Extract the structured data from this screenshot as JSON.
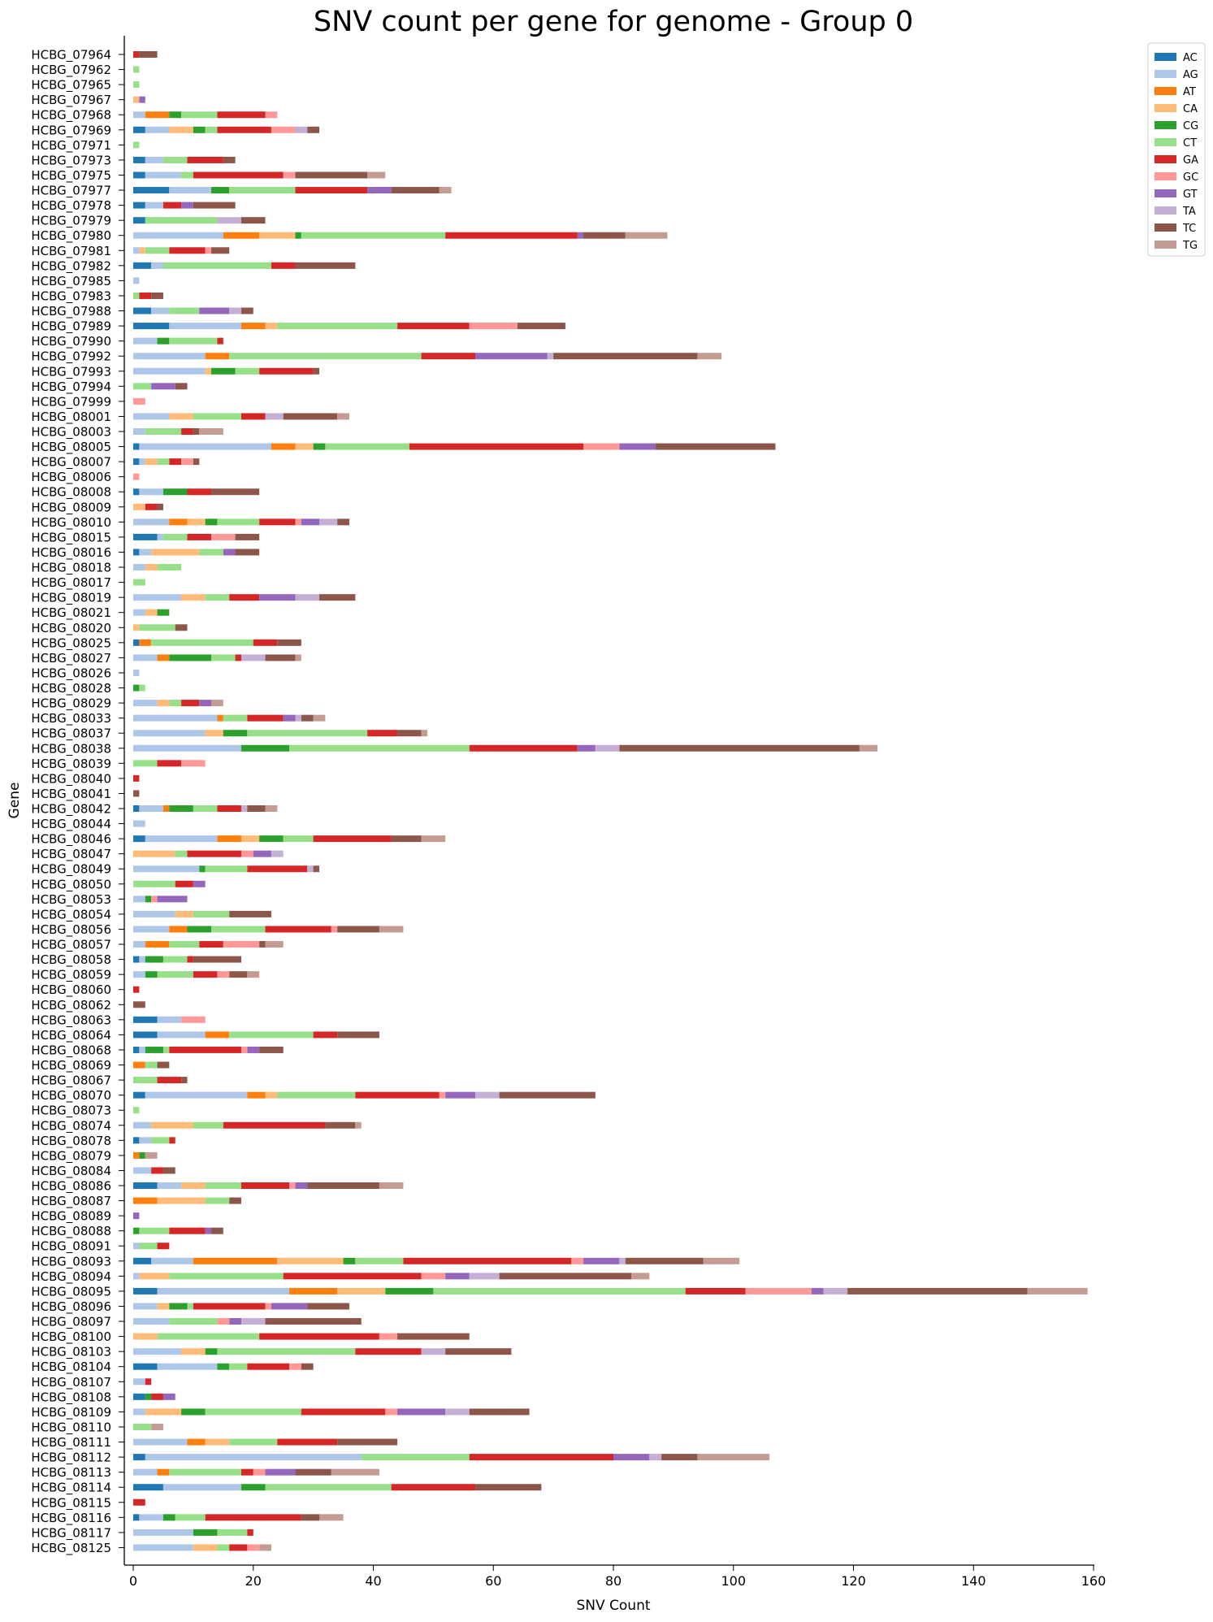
{
  "chart_data": {
    "type": "bar",
    "orientation": "horizontal",
    "stacked": true,
    "title": "SNV count per gene for genome - Group 0",
    "xlabel": "SNV Count",
    "ylabel": "Gene",
    "xlim": [
      0,
      160
    ],
    "xticks": [
      0,
      20,
      40,
      60,
      80,
      100,
      120,
      140,
      160
    ],
    "grid": false,
    "legend_position": "top-right (outside)",
    "series_names": [
      "AC",
      "AG",
      "AT",
      "CA",
      "CG",
      "CT",
      "GA",
      "GC",
      "GT",
      "TA",
      "TC",
      "TG"
    ],
    "colors": {
      "AC": "#1f77b4",
      "AG": "#aec7e8",
      "AT": "#ff7f0e",
      "CA": "#ffbb78",
      "CG": "#2ca02c",
      "CT": "#98df8a",
      "GA": "#d62728",
      "GC": "#ff9896",
      "GT": "#9467bd",
      "TA": "#c5b0d5",
      "TC": "#8c564b",
      "TG": "#c49c94"
    },
    "genes": [
      {
        "name": "HCBG_07964",
        "counts": {
          "GA": 1,
          "TC": 3
        }
      },
      {
        "name": "HCBG_07962",
        "counts": {
          "CT": 1
        }
      },
      {
        "name": "HCBG_07965",
        "counts": {
          "CT": 1
        }
      },
      {
        "name": "HCBG_07967",
        "counts": {
          "CA": 1,
          "GT": 1
        }
      },
      {
        "name": "HCBG_07968",
        "counts": {
          "AG": 2,
          "AT": 4,
          "CG": 2,
          "CT": 6,
          "GA": 8,
          "GC": 2
        }
      },
      {
        "name": "HCBG_07969",
        "counts": {
          "AC": 2,
          "AG": 4,
          "CA": 4,
          "CG": 2,
          "CT": 2,
          "GA": 9,
          "GC": 4,
          "TA": 2,
          "TC": 2
        }
      },
      {
        "name": "HCBG_07971",
        "counts": {
          "CT": 1
        }
      },
      {
        "name": "HCBG_07973",
        "counts": {
          "AC": 2,
          "AG": 3,
          "CT": 4,
          "GA": 6,
          "TC": 2
        }
      },
      {
        "name": "HCBG_07975",
        "counts": {
          "AC": 2,
          "AG": 6,
          "CT": 2,
          "GA": 15,
          "GC": 2,
          "TC": 12,
          "TG": 3
        }
      },
      {
        "name": "HCBG_07977",
        "counts": {
          "AC": 6,
          "AG": 7,
          "CG": 3,
          "CT": 11,
          "GA": 12,
          "GT": 4,
          "TC": 8,
          "TG": 2
        }
      },
      {
        "name": "HCBG_07978",
        "counts": {
          "AC": 2,
          "AG": 3,
          "GA": 3,
          "GT": 2,
          "TC": 7
        }
      },
      {
        "name": "HCBG_07979",
        "counts": {
          "AC": 2,
          "CT": 12,
          "TA": 4,
          "TC": 4
        }
      },
      {
        "name": "HCBG_07980",
        "counts": {
          "AG": 15,
          "AT": 6,
          "CA": 6,
          "CG": 1,
          "CT": 24,
          "GA": 22,
          "GT": 1,
          "TC": 7,
          "TG": 7
        }
      },
      {
        "name": "HCBG_07981",
        "counts": {
          "AG": 1,
          "CA": 1,
          "CT": 4,
          "GA": 6,
          "GC": 1,
          "TC": 3
        }
      },
      {
        "name": "HCBG_07982",
        "counts": {
          "AC": 3,
          "AG": 2,
          "CT": 18,
          "GA": 4,
          "TC": 10
        }
      },
      {
        "name": "HCBG_07985",
        "counts": {
          "AG": 1
        }
      },
      {
        "name": "HCBG_07983",
        "counts": {
          "CT": 1,
          "GA": 2,
          "TC": 2
        }
      },
      {
        "name": "HCBG_07988",
        "counts": {
          "AC": 3,
          "AG": 3,
          "CT": 5,
          "GT": 5,
          "TA": 2,
          "TC": 2
        }
      },
      {
        "name": "HCBG_07989",
        "counts": {
          "AC": 6,
          "AG": 12,
          "AT": 4,
          "CA": 2,
          "CT": 20,
          "GA": 12,
          "GC": 8,
          "TC": 8
        }
      },
      {
        "name": "HCBG_07990",
        "counts": {
          "AG": 4,
          "CG": 2,
          "CT": 8,
          "GA": 1
        }
      },
      {
        "name": "HCBG_07992",
        "counts": {
          "AG": 12,
          "AT": 4,
          "CT": 32,
          "GA": 9,
          "GT": 12,
          "TA": 1,
          "TC": 24,
          "TG": 4
        }
      },
      {
        "name": "HCBG_07993",
        "counts": {
          "AG": 12,
          "CA": 1,
          "CG": 4,
          "CT": 4,
          "GA": 9,
          "TC": 1
        }
      },
      {
        "name": "HCBG_07994",
        "counts": {
          "CT": 3,
          "GT": 4,
          "TC": 2
        }
      },
      {
        "name": "HCBG_07999",
        "counts": {
          "GC": 2
        }
      },
      {
        "name": "HCBG_08001",
        "counts": {
          "AG": 6,
          "CA": 4,
          "CT": 8,
          "GA": 4,
          "TA": 3,
          "TC": 9,
          "TG": 2
        }
      },
      {
        "name": "HCBG_08003",
        "counts": {
          "AG": 2,
          "CT": 6,
          "GA": 2,
          "TC": 1,
          "TG": 4
        }
      },
      {
        "name": "HCBG_08005",
        "counts": {
          "AC": 1,
          "AG": 22,
          "AT": 4,
          "CA": 3,
          "CG": 2,
          "CT": 14,
          "GA": 29,
          "GC": 6,
          "GT": 6,
          "TC": 20
        }
      },
      {
        "name": "HCBG_08007",
        "counts": {
          "AC": 1,
          "AG": 1,
          "CA": 2,
          "CT": 2,
          "GA": 2,
          "GC": 2,
          "TC": 1
        }
      },
      {
        "name": "HCBG_08006",
        "counts": {
          "GC": 1
        }
      },
      {
        "name": "HCBG_08008",
        "counts": {
          "AC": 1,
          "AG": 4,
          "CG": 4,
          "GA": 4,
          "TC": 8
        }
      },
      {
        "name": "HCBG_08009",
        "counts": {
          "CA": 2,
          "GA": 2,
          "TC": 1
        }
      },
      {
        "name": "HCBG_08010",
        "counts": {
          "AG": 6,
          "AT": 3,
          "CA": 3,
          "CG": 2,
          "CT": 7,
          "GA": 6,
          "GC": 1,
          "GT": 3,
          "TA": 3,
          "TC": 2
        }
      },
      {
        "name": "HCBG_08015",
        "counts": {
          "AC": 4,
          "AG": 1,
          "CT": 4,
          "GA": 4,
          "GC": 4,
          "TC": 4
        }
      },
      {
        "name": "HCBG_08016",
        "counts": {
          "AC": 1,
          "AG": 2,
          "CA": 8,
          "CT": 4,
          "GT": 2,
          "TC": 4
        }
      },
      {
        "name": "HCBG_08018",
        "counts": {
          "AG": 2,
          "CA": 2,
          "CT": 4
        }
      },
      {
        "name": "HCBG_08017",
        "counts": {
          "CT": 2
        }
      },
      {
        "name": "HCBG_08019",
        "counts": {
          "AG": 8,
          "CA": 4,
          "CT": 4,
          "GA": 5,
          "GT": 6,
          "TA": 4,
          "TC": 6
        }
      },
      {
        "name": "HCBG_08021",
        "counts": {
          "AG": 2,
          "CA": 2,
          "CG": 2
        }
      },
      {
        "name": "HCBG_08020",
        "counts": {
          "CA": 1,
          "CT": 6,
          "TC": 2
        }
      },
      {
        "name": "HCBG_08025",
        "counts": {
          "AC": 1,
          "AT": 2,
          "CT": 17,
          "GA": 4,
          "TC": 4
        }
      },
      {
        "name": "HCBG_08027",
        "counts": {
          "AG": 4,
          "AT": 2,
          "CG": 7,
          "CT": 4,
          "GA": 1,
          "TA": 4,
          "TC": 5,
          "TG": 1
        }
      },
      {
        "name": "HCBG_08026",
        "counts": {
          "AG": 1
        }
      },
      {
        "name": "HCBG_08028",
        "counts": {
          "CG": 1,
          "CT": 1
        }
      },
      {
        "name": "HCBG_08029",
        "counts": {
          "AG": 4,
          "CA": 2,
          "CT": 2,
          "GA": 3,
          "GT": 2,
          "TG": 2
        }
      },
      {
        "name": "HCBG_08033",
        "counts": {
          "AG": 14,
          "AT": 1,
          "CT": 4,
          "GA": 6,
          "GT": 2,
          "TA": 1,
          "TC": 2,
          "TG": 2
        }
      },
      {
        "name": "HCBG_08037",
        "counts": {
          "AG": 12,
          "CA": 3,
          "CG": 4,
          "CT": 20,
          "GA": 5,
          "TC": 4,
          "TG": 1
        }
      },
      {
        "name": "HCBG_08038",
        "counts": {
          "AG": 18,
          "CG": 8,
          "CT": 30,
          "GA": 18,
          "GT": 3,
          "TA": 4,
          "TC": 40,
          "TG": 3
        }
      },
      {
        "name": "HCBG_08039",
        "counts": {
          "CT": 4,
          "GA": 4,
          "GC": 4
        }
      },
      {
        "name": "HCBG_08040",
        "counts": {
          "GA": 1
        }
      },
      {
        "name": "HCBG_08041",
        "counts": {
          "TC": 1
        }
      },
      {
        "name": "HCBG_08042",
        "counts": {
          "AC": 1,
          "AG": 4,
          "AT": 1,
          "CG": 4,
          "CT": 4,
          "GA": 4,
          "TA": 1,
          "TC": 3,
          "TG": 2
        }
      },
      {
        "name": "HCBG_08044",
        "counts": {
          "AG": 2
        }
      },
      {
        "name": "HCBG_08046",
        "counts": {
          "AC": 2,
          "AG": 12,
          "AT": 4,
          "CA": 3,
          "CG": 4,
          "CT": 5,
          "GA": 13,
          "TC": 5,
          "TG": 4
        }
      },
      {
        "name": "HCBG_08047",
        "counts": {
          "CA": 7,
          "CT": 2,
          "GA": 9,
          "GC": 2,
          "GT": 3,
          "TA": 2
        }
      },
      {
        "name": "HCBG_08049",
        "counts": {
          "AG": 11,
          "CG": 1,
          "CT": 7,
          "GA": 10,
          "TA": 1,
          "TC": 1
        }
      },
      {
        "name": "HCBG_08050",
        "counts": {
          "CT": 7,
          "GA": 3,
          "GT": 2
        }
      },
      {
        "name": "HCBG_08053",
        "counts": {
          "AG": 2,
          "CG": 1,
          "GC": 1,
          "GT": 5
        }
      },
      {
        "name": "HCBG_08054",
        "counts": {
          "AG": 7,
          "CA": 3,
          "CT": 6,
          "TC": 7
        }
      },
      {
        "name": "HCBG_08056",
        "counts": {
          "AG": 6,
          "AT": 3,
          "CG": 4,
          "CT": 9,
          "GA": 11,
          "GC": 1,
          "TC": 7,
          "TG": 4
        }
      },
      {
        "name": "HCBG_08057",
        "counts": {
          "AG": 2,
          "AT": 4,
          "CT": 5,
          "GA": 4,
          "GC": 6,
          "TC": 1,
          "TG": 3
        }
      },
      {
        "name": "HCBG_08058",
        "counts": {
          "AC": 1,
          "AG": 1,
          "CG": 3,
          "CT": 4,
          "GA": 1,
          "TC": 8
        }
      },
      {
        "name": "HCBG_08059",
        "counts": {
          "AG": 2,
          "CG": 2,
          "CT": 6,
          "GA": 4,
          "GC": 2,
          "TC": 3,
          "TG": 2
        }
      },
      {
        "name": "HCBG_08060",
        "counts": {
          "GA": 1
        }
      },
      {
        "name": "HCBG_08062",
        "counts": {
          "TC": 2
        }
      },
      {
        "name": "HCBG_08063",
        "counts": {
          "AC": 4,
          "AG": 4,
          "GC": 4
        }
      },
      {
        "name": "HCBG_08064",
        "counts": {
          "AC": 4,
          "AG": 8,
          "AT": 4,
          "CT": 14,
          "GA": 4,
          "TC": 7
        }
      },
      {
        "name": "HCBG_08068",
        "counts": {
          "AC": 1,
          "AG": 1,
          "CG": 3,
          "CT": 1,
          "GA": 12,
          "GC": 1,
          "GT": 2,
          "TC": 4
        }
      },
      {
        "name": "HCBG_08069",
        "counts": {
          "AT": 2,
          "CT": 2,
          "TC": 2
        }
      },
      {
        "name": "HCBG_08067",
        "counts": {
          "CT": 4,
          "GA": 4,
          "TC": 1
        }
      },
      {
        "name": "HCBG_08070",
        "counts": {
          "AC": 2,
          "AG": 17,
          "AT": 3,
          "CA": 2,
          "CT": 13,
          "GA": 14,
          "GC": 1,
          "GT": 5,
          "TA": 4,
          "TC": 16
        }
      },
      {
        "name": "HCBG_08073",
        "counts": {
          "CT": 1
        }
      },
      {
        "name": "HCBG_08074",
        "counts": {
          "AG": 3,
          "CA": 7,
          "CT": 5,
          "GA": 17,
          "TC": 5,
          "TG": 1
        }
      },
      {
        "name": "HCBG_08078",
        "counts": {
          "AC": 1,
          "AG": 2,
          "CT": 3,
          "GA": 1
        }
      },
      {
        "name": "HCBG_08079",
        "counts": {
          "AT": 1,
          "CG": 1,
          "TG": 2
        }
      },
      {
        "name": "HCBG_08084",
        "counts": {
          "AG": 3,
          "GA": 2,
          "TC": 2
        }
      },
      {
        "name": "HCBG_08086",
        "counts": {
          "AC": 4,
          "AG": 4,
          "CA": 4,
          "CT": 6,
          "GA": 8,
          "GC": 1,
          "GT": 2,
          "TC": 12,
          "TG": 4
        }
      },
      {
        "name": "HCBG_08087",
        "counts": {
          "AT": 4,
          "CA": 8,
          "CT": 4,
          "TC": 2
        }
      },
      {
        "name": "HCBG_08089",
        "counts": {
          "GT": 1
        }
      },
      {
        "name": "HCBG_08088",
        "counts": {
          "CG": 1,
          "CT": 5,
          "GA": 6,
          "GT": 1,
          "TC": 2
        }
      },
      {
        "name": "HCBG_08091",
        "counts": {
          "AG": 1,
          "CT": 3,
          "GA": 2
        }
      },
      {
        "name": "HCBG_08093",
        "counts": {
          "AC": 3,
          "AG": 7,
          "AT": 14,
          "CA": 11,
          "CG": 2,
          "CT": 8,
          "GA": 28,
          "GC": 2,
          "GT": 6,
          "TA": 1,
          "TC": 13,
          "TG": 6
        }
      },
      {
        "name": "HCBG_08094",
        "counts": {
          "AG": 1,
          "CA": 5,
          "CT": 19,
          "GA": 23,
          "GC": 4,
          "GT": 4,
          "TA": 5,
          "TC": 22,
          "TG": 3
        }
      },
      {
        "name": "HCBG_08095",
        "counts": {
          "AC": 4,
          "AG": 22,
          "AT": 8,
          "CA": 8,
          "CG": 8,
          "CT": 42,
          "GA": 10,
          "GC": 11,
          "GT": 2,
          "TA": 4,
          "TC": 30,
          "TG": 10
        }
      },
      {
        "name": "HCBG_08096",
        "counts": {
          "AG": 4,
          "CA": 2,
          "CG": 3,
          "CT": 1,
          "GA": 12,
          "GC": 1,
          "GT": 6,
          "TC": 7
        }
      },
      {
        "name": "HCBG_08097",
        "counts": {
          "AG": 6,
          "CT": 8,
          "GC": 2,
          "GT": 2,
          "TA": 4,
          "TC": 16
        }
      },
      {
        "name": "HCBG_08100",
        "counts": {
          "CA": 4,
          "CT": 17,
          "GA": 20,
          "GC": 3,
          "TC": 12
        }
      },
      {
        "name": "HCBG_08103",
        "counts": {
          "AG": 8,
          "CA": 4,
          "CG": 2,
          "CT": 23,
          "GA": 11,
          "TA": 4,
          "TC": 11
        }
      },
      {
        "name": "HCBG_08104",
        "counts": {
          "AC": 4,
          "AG": 10,
          "CG": 2,
          "CT": 3,
          "GA": 7,
          "GC": 2,
          "TC": 2
        }
      },
      {
        "name": "HCBG_08107",
        "counts": {
          "AG": 2,
          "GA": 1
        }
      },
      {
        "name": "HCBG_08108",
        "counts": {
          "AC": 2,
          "CG": 1,
          "GA": 2,
          "GT": 2
        }
      },
      {
        "name": "HCBG_08109",
        "counts": {
          "AG": 2,
          "CA": 6,
          "CG": 4,
          "CT": 16,
          "GA": 14,
          "GC": 2,
          "GT": 8,
          "TA": 4,
          "TC": 10
        }
      },
      {
        "name": "HCBG_08110",
        "counts": {
          "CT": 3,
          "TG": 2
        }
      },
      {
        "name": "HCBG_08111",
        "counts": {
          "AG": 9,
          "AT": 3,
          "CA": 4,
          "CT": 8,
          "GA": 10,
          "TC": 10
        }
      },
      {
        "name": "HCBG_08112",
        "counts": {
          "AC": 2,
          "AG": 36,
          "CT": 18,
          "GA": 24,
          "GT": 6,
          "TA": 2,
          "TC": 6,
          "TG": 12
        }
      },
      {
        "name": "HCBG_08113",
        "counts": {
          "AG": 4,
          "AT": 2,
          "CT": 12,
          "GA": 2,
          "GC": 2,
          "GT": 5,
          "TC": 6,
          "TG": 8
        }
      },
      {
        "name": "HCBG_08114",
        "counts": {
          "AC": 5,
          "AG": 13,
          "CG": 4,
          "CT": 21,
          "GA": 14,
          "TC": 11
        }
      },
      {
        "name": "HCBG_08115",
        "counts": {
          "GA": 2
        }
      },
      {
        "name": "HCBG_08116",
        "counts": {
          "AC": 1,
          "AG": 4,
          "CG": 2,
          "CT": 5,
          "GA": 16,
          "TC": 3,
          "TG": 4
        }
      },
      {
        "name": "HCBG_08117",
        "counts": {
          "AG": 10,
          "CG": 4,
          "CT": 5,
          "GA": 1
        }
      },
      {
        "name": "HCBG_08125",
        "counts": {
          "AG": 10,
          "CA": 4,
          "CT": 2,
          "GA": 3,
          "GC": 2,
          "TG": 2
        }
      }
    ]
  }
}
